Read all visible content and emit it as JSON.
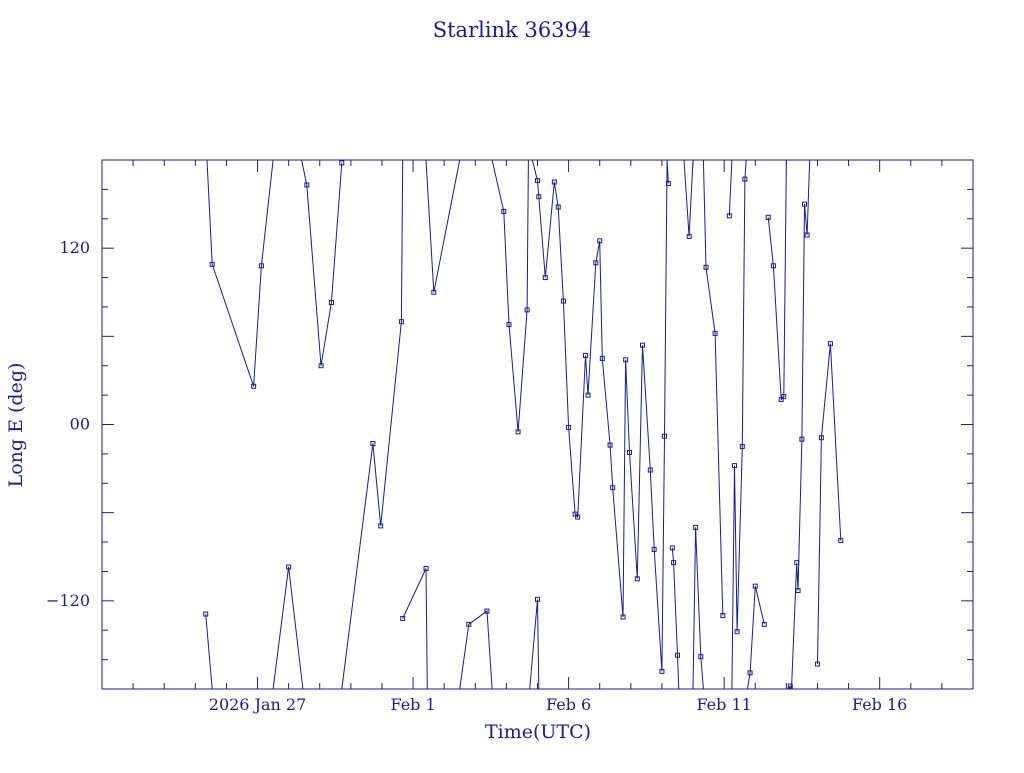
{
  "chart_data": {
    "type": "line",
    "title": "Starlink 36394",
    "xlabel": "Time(UTC)",
    "ylabel": "Long E (deg)",
    "x_unit": "days (UTC), ticks at Jan 27, Feb 1, Feb 6, Feb 11, Feb 16 2026",
    "xlim": [
      "2026-01-22T00:00",
      "2026-02-19T00:00"
    ],
    "ylim": [
      -180,
      180
    ],
    "grid": false,
    "line_color": "#1a1a9e",
    "x_tick_labels": [
      {
        "label": "2026 Jan 27",
        "x": "2026-01-27"
      },
      {
        "label": "Feb  1",
        "x": "2026-02-01"
      },
      {
        "label": "Feb  6",
        "x": "2026-02-06"
      },
      {
        "label": "Feb 11",
        "x": "2026-02-11"
      },
      {
        "label": "Feb 16",
        "x": "2026-02-16"
      }
    ],
    "y_tick_labels": [
      {
        "label": "120",
        "y": 120
      },
      {
        "label": "00",
        "y": 0
      },
      {
        "label": "−120",
        "y": -120
      }
    ],
    "series": [
      {
        "values": [
          [
            "2026-01-25T08:00",
            -129
          ],
          [
            "2026-01-25T13:00",
            -180
          ],
          [
            "2026-01-25T09:00",
            180
          ],
          [
            "2026-01-25T13:00",
            109
          ],
          [
            "2026-01-26T21:00",
            26
          ],
          [
            "2026-01-27T03:00",
            108
          ],
          [
            "2026-01-27T12:00",
            180
          ],
          [
            "2026-01-27T12:00",
            -180
          ],
          [
            "2026-01-28T00:00",
            -97
          ],
          [
            "2026-01-28T11:00",
            -180
          ],
          [
            "2026-01-28T10:00",
            180
          ],
          [
            "2026-01-28T14:00",
            163
          ],
          [
            "2026-01-29T01:00",
            40
          ],
          [
            "2026-01-29T09:00",
            83
          ],
          [
            "2026-01-29T17:00",
            178
          ],
          [
            "2026-01-29T17:00",
            -180
          ],
          [
            "2026-01-30T17:00",
            -13
          ],
          [
            "2026-01-30T23:00",
            -69
          ],
          [
            "2026-01-31T15:00",
            70
          ],
          [
            "2026-01-31T16:00",
            180
          ],
          [
            "2026-01-31T16:00",
            -132
          ],
          [
            "2026-02-01T10:00",
            -98
          ],
          [
            "2026-02-01T11:00",
            -180
          ],
          [
            "2026-02-01T10:00",
            180
          ],
          [
            "2026-02-01T16:00",
            90
          ],
          [
            "2026-02-02T12:00",
            180
          ],
          [
            "2026-02-02T12:00",
            -180
          ],
          [
            "2026-02-02T19:00",
            -136
          ],
          [
            "2026-02-03T09:00",
            -127
          ],
          [
            "2026-02-03T13:00",
            -180
          ],
          [
            "2026-02-03T13:00",
            180
          ],
          [
            "2026-02-03T22:00",
            145
          ],
          [
            "2026-02-04T02:00",
            68
          ],
          [
            "2026-02-04T09:00",
            -5
          ],
          [
            "2026-02-04T16:00",
            78
          ],
          [
            "2026-02-04T17:00",
            180
          ],
          [
            "2026-02-04T18:00",
            -180
          ],
          [
            "2026-02-05T00:00",
            -119
          ],
          [
            "2026-02-05T01:00",
            -180
          ],
          [
            "2026-02-04T20:00",
            180
          ],
          [
            "2026-02-05T00:00",
            166
          ],
          [
            "2026-02-05T01:00",
            155
          ],
          [
            "2026-02-05T06:00",
            100
          ],
          [
            "2026-02-05T13:00",
            165
          ],
          [
            "2026-02-05T16:00",
            148
          ],
          [
            "2026-02-05T20:00",
            84
          ],
          [
            "2026-02-06T00:00",
            -2
          ],
          [
            "2026-02-06T05:00",
            -61
          ],
          [
            "2026-02-06T07:00",
            -63
          ],
          [
            "2026-02-06T13:00",
            47
          ],
          [
            "2026-02-06T15:00",
            20
          ],
          [
            "2026-02-06T21:00",
            110
          ],
          [
            "2026-02-07T00:00",
            125
          ],
          [
            "2026-02-07T02:00",
            45
          ],
          [
            "2026-02-07T08:00",
            -14
          ],
          [
            "2026-02-07T10:00",
            -43
          ],
          [
            "2026-02-07T18:00",
            -131
          ],
          [
            "2026-02-07T20:00",
            44
          ],
          [
            "2026-02-07T23:00",
            -19
          ],
          [
            "2026-02-08T05:00",
            -105
          ],
          [
            "2026-02-08T09:00",
            54
          ],
          [
            "2026-02-08T15:00",
            -31
          ],
          [
            "2026-02-08T18:00",
            -85
          ],
          [
            "2026-02-09T00:00",
            -168
          ],
          [
            "2026-02-09T02:00",
            -8
          ],
          [
            "2026-02-09T04:00",
            180
          ],
          [
            "2026-02-09T05:00",
            164
          ],
          [
            "2026-02-09T08:00",
            -84
          ],
          [
            "2026-02-09T09:00",
            -94
          ],
          [
            "2026-02-09T12:00",
            -157
          ],
          [
            "2026-02-09T13:00",
            -180
          ],
          [
            "2026-02-09T17:00",
            180
          ],
          [
            "2026-02-09T21:00",
            128
          ],
          [
            "2026-02-10T00:00",
            180
          ],
          [
            "2026-02-10T00:00",
            -180
          ],
          [
            "2026-02-10T02:00",
            -70
          ],
          [
            "2026-02-10T06:00",
            -158
          ],
          [
            "2026-02-10T08:00",
            -180
          ],
          [
            "2026-02-10T08:00",
            180
          ],
          [
            "2026-02-10T10:00",
            107
          ],
          [
            "2026-02-10T17:00",
            62
          ],
          [
            "2026-02-10T23:00",
            -130
          ],
          [
            "2026-02-11T04:00",
            142
          ],
          [
            "2026-02-11T06:00",
            180
          ],
          [
            "2026-02-11T06:00",
            -180
          ],
          [
            "2026-02-11T08:00",
            -28
          ],
          [
            "2026-02-11T10:00",
            -141
          ],
          [
            "2026-02-11T14:00",
            -15
          ],
          [
            "2026-02-11T16:00",
            167
          ],
          [
            "2026-02-11T17:00",
            180
          ],
          [
            "2026-02-11T18:00",
            -180
          ],
          [
            "2026-02-11T20:00",
            -169
          ],
          [
            "2026-02-12T00:00",
            -110
          ],
          [
            "2026-02-12T07:00",
            -136
          ],
          [
            "2026-02-12T10:00",
            141
          ],
          [
            "2026-02-12T14:00",
            108
          ],
          [
            "2026-02-12T20:00",
            17
          ],
          [
            "2026-02-12T22:00",
            19
          ],
          [
            "2026-02-13T00:00",
            180
          ],
          [
            "2026-02-13T01:00",
            -180
          ],
          [
            "2026-02-13T03:00",
            -178
          ],
          [
            "2026-02-13T04:00",
            -180
          ],
          [
            "2026-02-13T08:00",
            -94
          ],
          [
            "2026-02-13T09:00",
            -113
          ],
          [
            "2026-02-13T12:00",
            -10
          ],
          [
            "2026-02-13T14:00",
            150
          ],
          [
            "2026-02-13T16:00",
            129
          ],
          [
            "2026-02-13T18:00",
            180
          ],
          [
            "2026-02-14T00:00",
            -163
          ],
          [
            "2026-02-14T03:00",
            -9
          ],
          [
            "2026-02-14T10:00",
            55
          ],
          [
            "2026-02-14T18:00",
            -79
          ]
        ]
      }
    ]
  }
}
